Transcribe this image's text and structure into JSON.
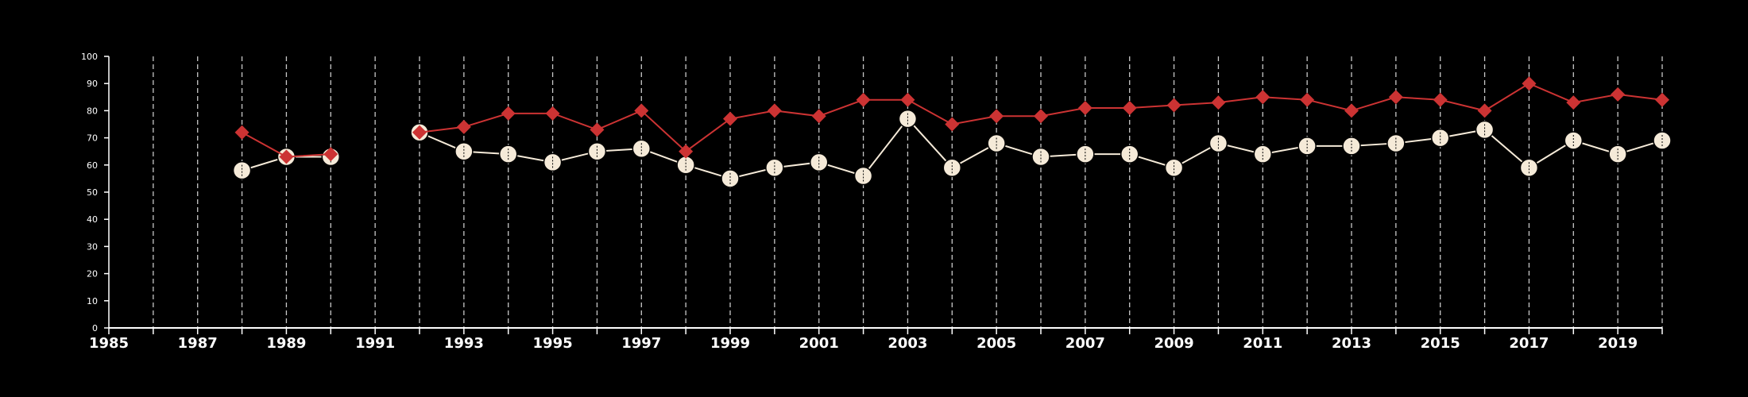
{
  "chart_data": {
    "type": "line",
    "title": "",
    "xlabel": "",
    "ylabel": "",
    "xlim": [
      1985,
      2020
    ],
    "ylim": [
      0,
      100
    ],
    "yticks": [
      0,
      10,
      20,
      30,
      40,
      50,
      60,
      70,
      80,
      90,
      100
    ],
    "xtick_labels": [
      "1985",
      "1987",
      "1989",
      "1991",
      "1993",
      "1995",
      "1997",
      "1999",
      "2001",
      "2003",
      "2005",
      "2007",
      "2009",
      "2011",
      "2013",
      "2015",
      "2017",
      "2019"
    ],
    "grid": "vertical dashed lines at every year",
    "legend": "none",
    "background": "#000000",
    "series": [
      {
        "color": "#cc3333",
        "marker": "diamond",
        "points": [
          [
            1988,
            72
          ],
          [
            1989,
            63
          ],
          [
            1990,
            64
          ],
          [
            1992,
            72
          ],
          [
            1993,
            74
          ],
          [
            1994,
            79
          ],
          [
            1995,
            79
          ],
          [
            1996,
            73
          ],
          [
            1997,
            80
          ],
          [
            1998,
            65
          ],
          [
            1999,
            77
          ],
          [
            2000,
            80
          ],
          [
            2001,
            78
          ],
          [
            2002,
            84
          ],
          [
            2003,
            84
          ],
          [
            2004,
            75
          ],
          [
            2005,
            78
          ],
          [
            2006,
            78
          ],
          [
            2007,
            81
          ],
          [
            2008,
            81
          ],
          [
            2009,
            82
          ],
          [
            2010,
            83
          ],
          [
            2011,
            85
          ],
          [
            2012,
            84
          ],
          [
            2013,
            80
          ],
          [
            2014,
            85
          ],
          [
            2015,
            84
          ],
          [
            2016,
            80
          ],
          [
            2017,
            90
          ],
          [
            2018,
            83
          ],
          [
            2019,
            86
          ],
          [
            2020,
            84
          ]
        ],
        "segments": [
          [
            1988,
            1990
          ],
          [
            1992,
            2020
          ]
        ]
      },
      {
        "color": "#f5ead8",
        "marker": "circle",
        "points": [
          [
            1988,
            58
          ],
          [
            1989,
            63
          ],
          [
            1990,
            63
          ],
          [
            1992,
            72
          ],
          [
            1993,
            65
          ],
          [
            1994,
            64
          ],
          [
            1995,
            61
          ],
          [
            1996,
            65
          ],
          [
            1997,
            66
          ],
          [
            1998,
            60
          ],
          [
            1999,
            55
          ],
          [
            2000,
            59
          ],
          [
            2001,
            61
          ],
          [
            2002,
            56
          ],
          [
            2003,
            77
          ],
          [
            2004,
            59
          ],
          [
            2005,
            68
          ],
          [
            2006,
            63
          ],
          [
            2007,
            64
          ],
          [
            2008,
            64
          ],
          [
            2009,
            59
          ],
          [
            2010,
            68
          ],
          [
            2011,
            64
          ],
          [
            2012,
            67
          ],
          [
            2013,
            67
          ],
          [
            2014,
            68
          ],
          [
            2015,
            70
          ],
          [
            2016,
            73
          ],
          [
            2017,
            59
          ],
          [
            2018,
            69
          ],
          [
            2019,
            64
          ],
          [
            2020,
            69
          ]
        ],
        "segments": [
          [
            1988,
            1990
          ],
          [
            1992,
            2020
          ]
        ]
      }
    ]
  }
}
